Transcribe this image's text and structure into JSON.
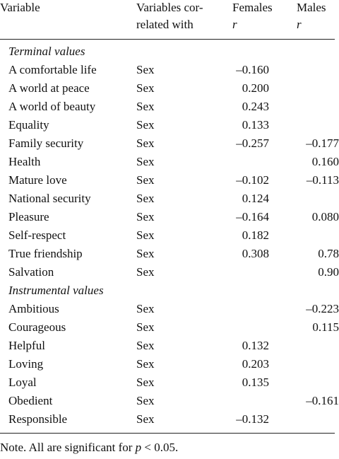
{
  "table": {
    "columns": [
      {
        "lines": [
          "Variable"
        ]
      },
      {
        "lines": [
          "Variables cor-",
          "related with"
        ]
      },
      {
        "lines": [
          "Females",
          "r"
        ]
      },
      {
        "lines": [
          "Males",
          "r"
        ]
      }
    ],
    "sections": [
      {
        "title": "Terminal values",
        "rows": [
          [
            "A comfortable life",
            "Sex",
            "–0.160",
            null
          ],
          [
            "A world at peace",
            "Sex",
            "0.200",
            null
          ],
          [
            "A world of beauty",
            "Sex",
            "0.243",
            null
          ],
          [
            "Equality",
            "Sex",
            "0.133",
            null
          ],
          [
            "Family security",
            "Sex",
            "–0.257",
            "–0.177"
          ],
          [
            "Health",
            "Sex",
            null,
            "0.160"
          ],
          [
            "Mature love",
            "Sex",
            "–0.102",
            "–0.113"
          ],
          [
            "National security",
            "Sex",
            "0.124",
            null
          ],
          [
            "Pleasure",
            "Sex",
            "–0.164",
            "0.080"
          ],
          [
            "Self-respect",
            "Sex",
            "0.182",
            null
          ],
          [
            "True friendship",
            "Sex",
            "0.308",
            "0.78"
          ],
          [
            "Salvation",
            "Sex",
            null,
            "0.90"
          ]
        ]
      },
      {
        "title": "Instrumental values",
        "rows": [
          [
            "Ambitious",
            "Sex",
            null,
            "–0.223"
          ],
          [
            "Courageous",
            "Sex",
            null,
            "0.115"
          ],
          [
            "Helpful",
            "Sex",
            "0.132",
            null
          ],
          [
            "Loving",
            "Sex",
            "0.203",
            null
          ],
          [
            "Loyal",
            "Sex",
            "0.135",
            null
          ],
          [
            "Obedient",
            "Sex",
            null,
            "–0.161"
          ],
          [
            "Responsible",
            "Sex",
            "–0.132",
            null
          ]
        ]
      }
    ]
  },
  "note": {
    "text": "Note. All are significant for",
    "variable": "p",
    "condition": "< 0.05."
  }
}
